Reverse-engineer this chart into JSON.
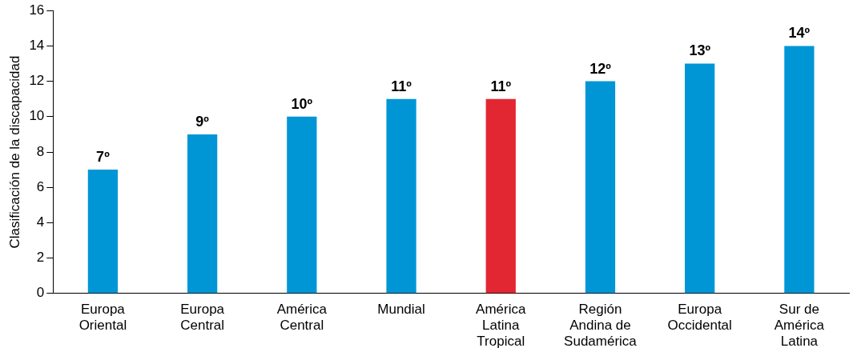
{
  "chart_data": {
    "type": "bar",
    "ylabel": "Clasificación de la discapacidad",
    "categories": [
      "Europa\nOriental",
      "Europa\nCentral",
      "América\nCentral",
      "Mundial",
      "América\nLatina\nTropical",
      "Región\nAndina de\nSudamérica",
      "Europa\nOccidental",
      "Sur de\nAmérica\nLatina"
    ],
    "values": [
      7,
      9,
      10,
      11,
      11,
      12,
      13,
      14
    ],
    "colors": [
      "#0096d6",
      "#0096d6",
      "#0096d6",
      "#0096d6",
      "#e32732",
      "#0096d6",
      "#0096d6",
      "#0096d6"
    ],
    "value_labels": [
      "7º",
      "9º",
      "10º",
      "11º",
      "11º",
      "12º",
      "13º",
      "14º"
    ],
    "ylim": [
      0,
      16
    ],
    "yticks": [
      0,
      2,
      4,
      6,
      8,
      10,
      12,
      14,
      16
    ],
    "grid": false
  }
}
